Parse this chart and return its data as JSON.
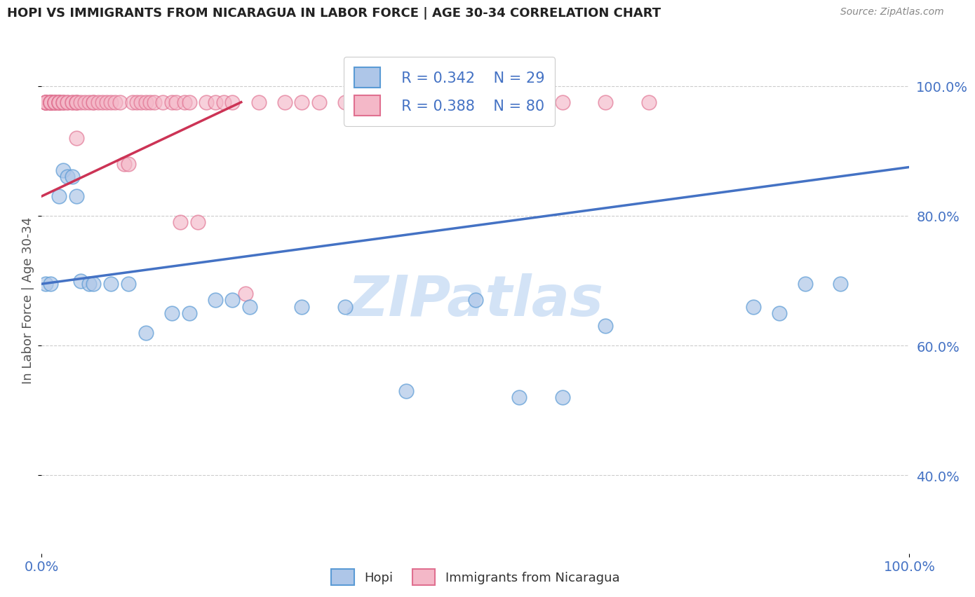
{
  "title": "HOPI VS IMMIGRANTS FROM NICARAGUA IN LABOR FORCE | AGE 30-34 CORRELATION CHART",
  "source": "Source: ZipAtlas.com",
  "ylabel": "In Labor Force | Age 30-34",
  "xlim": [
    0.0,
    1.0
  ],
  "ylim": [
    0.28,
    1.06
  ],
  "x_tick_labels": [
    "0.0%",
    "100.0%"
  ],
  "x_tick_values": [
    0.0,
    1.0
  ],
  "y_tick_labels": [
    "40.0%",
    "60.0%",
    "80.0%",
    "100.0%"
  ],
  "y_tick_values": [
    0.4,
    0.6,
    0.8,
    1.0
  ],
  "legend_r_hopi": "R = 0.342",
  "legend_n_hopi": "N = 29",
  "legend_r_nicaragua": "R = 0.388",
  "legend_n_nicaragua": "N = 80",
  "hopi_color": "#aec6e8",
  "hopi_edge_color": "#5b9bd5",
  "hopi_line_color": "#4472c4",
  "nicaragua_color": "#f4b8c8",
  "nicaragua_edge_color": "#e07090",
  "nicaragua_line_color": "#cc3355",
  "watermark_color": "#ccdff5",
  "hopi_line_x0": 0.0,
  "hopi_line_y0": 0.695,
  "hopi_line_x1": 1.0,
  "hopi_line_y1": 0.875,
  "nicaragua_line_x0": 0.0,
  "nicaragua_line_y0": 0.83,
  "nicaragua_line_x1": 0.23,
  "nicaragua_line_y1": 0.975,
  "hopi_scatter_x": [
    0.005,
    0.01,
    0.02,
    0.025,
    0.03,
    0.035,
    0.04,
    0.045,
    0.055,
    0.06,
    0.08,
    0.1,
    0.12,
    0.15,
    0.17,
    0.2,
    0.22,
    0.24,
    0.3,
    0.35,
    0.42,
    0.5,
    0.55,
    0.6,
    0.65,
    0.82,
    0.85,
    0.88,
    0.92
  ],
  "hopi_scatter_y": [
    0.695,
    0.695,
    0.83,
    0.87,
    0.86,
    0.86,
    0.83,
    0.7,
    0.695,
    0.695,
    0.695,
    0.695,
    0.62,
    0.65,
    0.65,
    0.67,
    0.67,
    0.66,
    0.66,
    0.66,
    0.53,
    0.67,
    0.52,
    0.52,
    0.63,
    0.66,
    0.65,
    0.695,
    0.695
  ],
  "nicaragua_scatter_x": [
    0.005,
    0.005,
    0.005,
    0.005,
    0.005,
    0.005,
    0.01,
    0.01,
    0.01,
    0.01,
    0.01,
    0.01,
    0.01,
    0.01,
    0.015,
    0.015,
    0.015,
    0.015,
    0.015,
    0.02,
    0.02,
    0.02,
    0.02,
    0.02,
    0.025,
    0.025,
    0.025,
    0.03,
    0.03,
    0.035,
    0.035,
    0.04,
    0.04,
    0.04,
    0.04,
    0.045,
    0.05,
    0.055,
    0.06,
    0.06,
    0.065,
    0.07,
    0.075,
    0.08,
    0.085,
    0.09,
    0.095,
    0.1,
    0.105,
    0.11,
    0.115,
    0.12,
    0.125,
    0.13,
    0.14,
    0.15,
    0.155,
    0.16,
    0.165,
    0.17,
    0.18,
    0.19,
    0.2,
    0.21,
    0.22,
    0.235,
    0.25,
    0.28,
    0.3,
    0.32,
    0.35,
    0.38,
    0.4,
    0.43,
    0.46,
    0.5,
    0.55,
    0.6,
    0.65,
    0.7
  ],
  "nicaragua_scatter_y": [
    0.975,
    0.975,
    0.975,
    0.975,
    0.975,
    0.975,
    0.975,
    0.975,
    0.975,
    0.975,
    0.975,
    0.975,
    0.975,
    0.975,
    0.975,
    0.975,
    0.975,
    0.975,
    0.975,
    0.975,
    0.975,
    0.975,
    0.975,
    0.975,
    0.975,
    0.975,
    0.975,
    0.975,
    0.975,
    0.975,
    0.975,
    0.975,
    0.975,
    0.975,
    0.92,
    0.975,
    0.975,
    0.975,
    0.975,
    0.975,
    0.975,
    0.975,
    0.975,
    0.975,
    0.975,
    0.975,
    0.88,
    0.88,
    0.975,
    0.975,
    0.975,
    0.975,
    0.975,
    0.975,
    0.975,
    0.975,
    0.975,
    0.79,
    0.975,
    0.975,
    0.79,
    0.975,
    0.975,
    0.975,
    0.975,
    0.68,
    0.975,
    0.975,
    0.975,
    0.975,
    0.975,
    0.975,
    0.975,
    0.975,
    0.975,
    0.975,
    0.975,
    0.975,
    0.975,
    0.975
  ]
}
